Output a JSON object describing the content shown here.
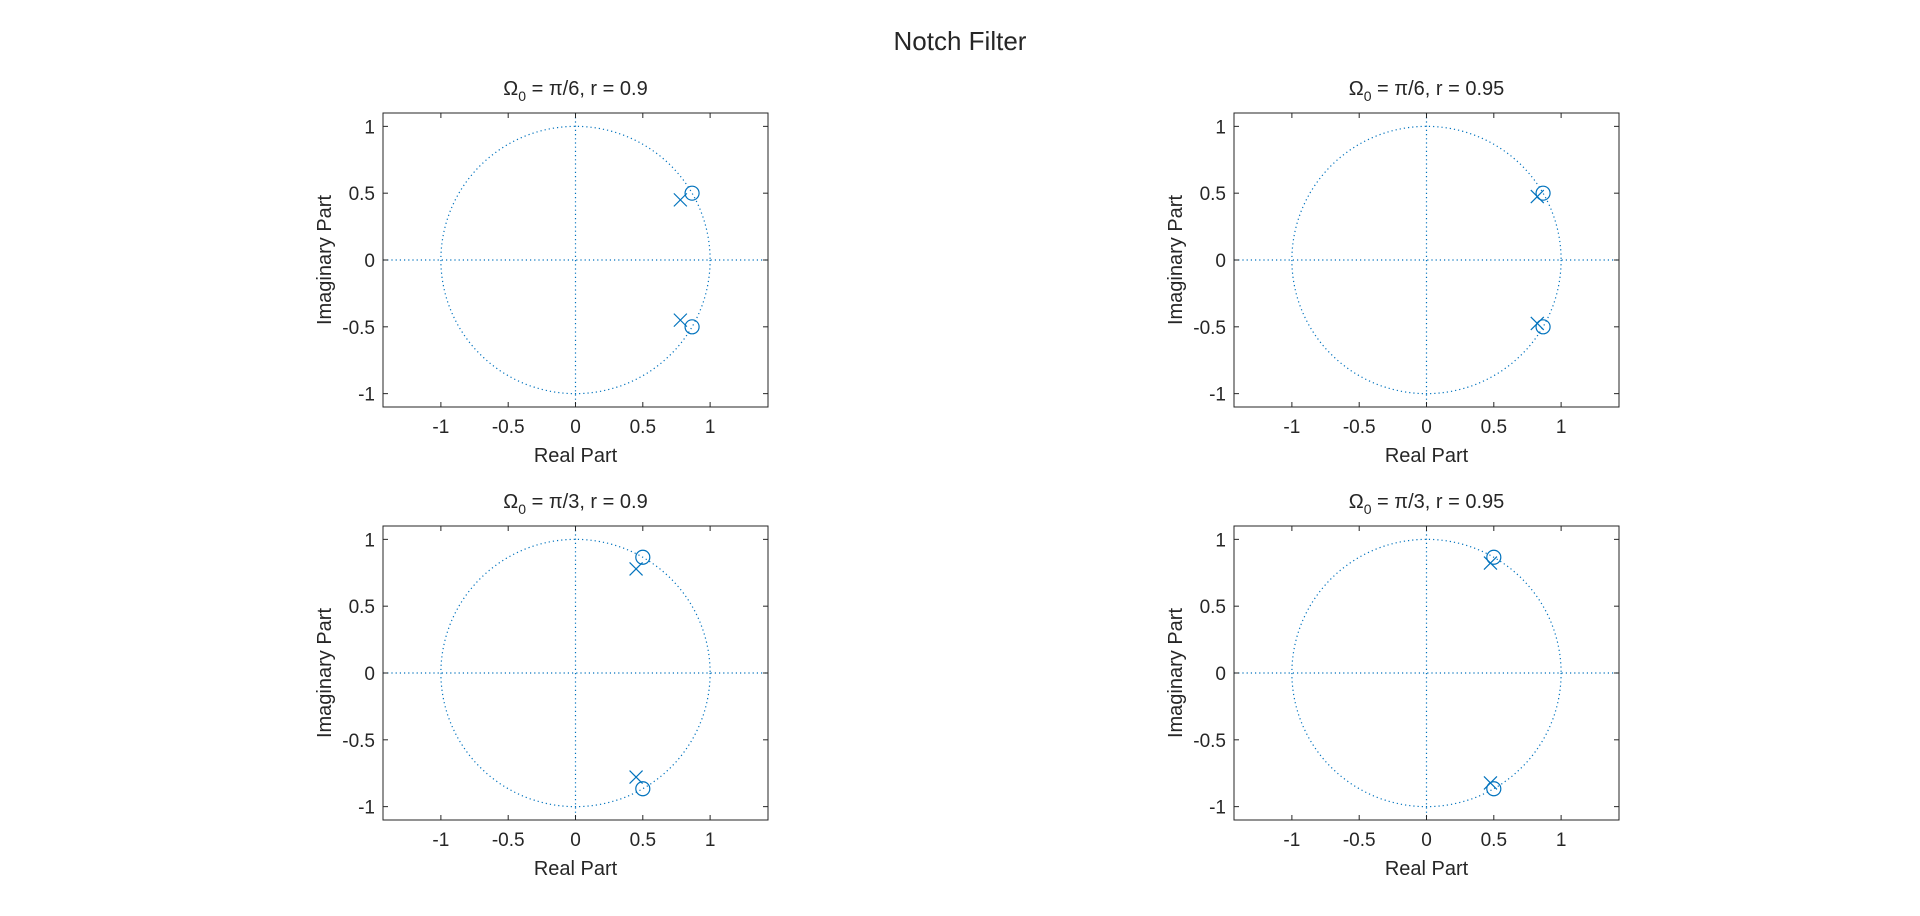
{
  "figure": {
    "title": "Notch Filter",
    "colors": {
      "marker": "#0072BD",
      "axes": "#262626",
      "text": "#262626",
      "background": "#ffffff"
    }
  },
  "chart_data": [
    {
      "type": "scatter",
      "subtype": "pole-zero",
      "title_parts": [
        "Ω",
        "0",
        " = π/6, r = 0.9"
      ],
      "xlabel": "Real Part",
      "ylabel": "Imaginary Part",
      "xlim": [
        -1.43,
        1.43
      ],
      "ylim": [
        -1.1,
        1.1
      ],
      "xticks": [
        -1,
        -0.5,
        0,
        0.5,
        1
      ],
      "xtick_labels": [
        "-1",
        "-0.5",
        "0",
        "0.5",
        "1"
      ],
      "yticks": [
        -1,
        -0.5,
        0,
        0.5,
        1
      ],
      "ytick_labels": [
        "-1",
        "-0.5",
        "0",
        "0.5",
        "1"
      ],
      "unit_circle": true,
      "zeros": [
        [
          0.866,
          0.5
        ],
        [
          0.866,
          -0.5
        ]
      ],
      "poles": [
        [
          0.779,
          0.45
        ],
        [
          0.779,
          -0.45
        ]
      ]
    },
    {
      "type": "scatter",
      "subtype": "pole-zero",
      "title_parts": [
        "Ω",
        "0",
        " = π/6, r = 0.95"
      ],
      "xlabel": "Real Part",
      "ylabel": "Imaginary Part",
      "xlim": [
        -1.43,
        1.43
      ],
      "ylim": [
        -1.1,
        1.1
      ],
      "xticks": [
        -1,
        -0.5,
        0,
        0.5,
        1
      ],
      "xtick_labels": [
        "-1",
        "-0.5",
        "0",
        "0.5",
        "1"
      ],
      "yticks": [
        -1,
        -0.5,
        0,
        0.5,
        1
      ],
      "ytick_labels": [
        "-1",
        "-0.5",
        "0",
        "0.5",
        "1"
      ],
      "unit_circle": true,
      "zeros": [
        [
          0.866,
          0.5
        ],
        [
          0.866,
          -0.5
        ]
      ],
      "poles": [
        [
          0.823,
          0.475
        ],
        [
          0.823,
          -0.475
        ]
      ]
    },
    {
      "type": "scatter",
      "subtype": "pole-zero",
      "title_parts": [
        "Ω",
        "0",
        " = π/3, r = 0.9"
      ],
      "xlabel": "Real Part",
      "ylabel": "Imaginary Part",
      "xlim": [
        -1.43,
        1.43
      ],
      "ylim": [
        -1.1,
        1.1
      ],
      "xticks": [
        -1,
        -0.5,
        0,
        0.5,
        1
      ],
      "xtick_labels": [
        "-1",
        "-0.5",
        "0",
        "0.5",
        "1"
      ],
      "yticks": [
        -1,
        -0.5,
        0,
        0.5,
        1
      ],
      "ytick_labels": [
        "-1",
        "-0.5",
        "0",
        "0.5",
        "1"
      ],
      "unit_circle": true,
      "zeros": [
        [
          0.5,
          0.866
        ],
        [
          0.5,
          -0.866
        ]
      ],
      "poles": [
        [
          0.45,
          0.779
        ],
        [
          0.45,
          -0.779
        ]
      ]
    },
    {
      "type": "scatter",
      "subtype": "pole-zero",
      "title_parts": [
        "Ω",
        "0",
        " = π/3, r = 0.95"
      ],
      "xlabel": "Real Part",
      "ylabel": "Imaginary Part",
      "xlim": [
        -1.43,
        1.43
      ],
      "ylim": [
        -1.1,
        1.1
      ],
      "xticks": [
        -1,
        -0.5,
        0,
        0.5,
        1
      ],
      "xtick_labels": [
        "-1",
        "-0.5",
        "0",
        "0.5",
        "1"
      ],
      "yticks": [
        -1,
        -0.5,
        0,
        0.5,
        1
      ],
      "ytick_labels": [
        "-1",
        "-0.5",
        "0",
        "0.5",
        "1"
      ],
      "unit_circle": true,
      "zeros": [
        [
          0.5,
          0.866
        ],
        [
          0.5,
          -0.866
        ]
      ],
      "poles": [
        [
          0.475,
          0.823
        ],
        [
          0.475,
          -0.823
        ]
      ]
    }
  ]
}
